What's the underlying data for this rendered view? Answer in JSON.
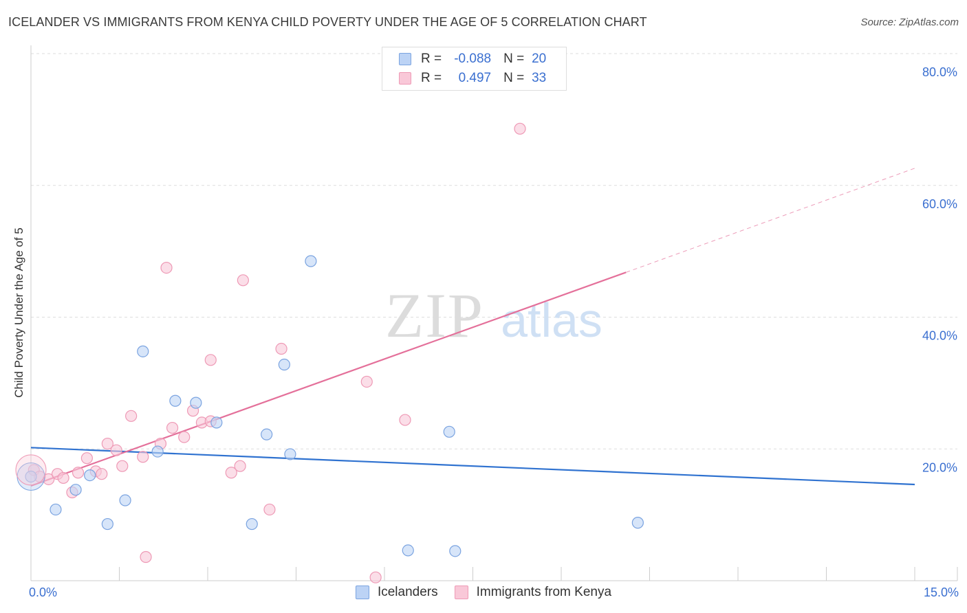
{
  "header": {
    "title": "ICELANDER VS IMMIGRANTS FROM KENYA CHILD POVERTY UNDER THE AGE OF 5 CORRELATION CHART",
    "source": "Source: ZipAtlas.com"
  },
  "watermark": {
    "zip": "ZIP",
    "atlas": "atlas"
  },
  "legend": {
    "rows": [
      {
        "r_label": "R =",
        "r_value": "-0.088",
        "n_label": "N =",
        "n_value": "20"
      },
      {
        "r_label": "R =",
        "r_value": "0.497",
        "n_label": "N =",
        "n_value": "33"
      }
    ]
  },
  "colors": {
    "blue_fill": "#bcd3f5",
    "blue_stroke": "#7aa3e0",
    "blue_line": "#2f72d0",
    "pink_fill": "#f9c8d8",
    "pink_stroke": "#ee99b5",
    "pink_line": "#e4709a",
    "tick_text": "#3a6fd0",
    "grid": "#dddddd"
  },
  "chart_data": {
    "type": "scatter",
    "title": "ICELANDER VS IMMIGRANTS FROM KENYA CHILD POVERTY UNDER THE AGE OF 5 CORRELATION CHART",
    "xlabel": "",
    "ylabel": "Child Poverty Under the Age of 5",
    "xlim": [
      0,
      15
    ],
    "ylim": [
      0,
      80
    ],
    "x_tick_labels": [
      "0.0%",
      "15.0%"
    ],
    "y_ticks": [
      20,
      40,
      60,
      80
    ],
    "y_tick_labels": [
      "20.0%",
      "40.0%",
      "60.0%",
      "80.0%"
    ],
    "grid": true,
    "legend_placement": "bottom-center",
    "series": [
      {
        "name": "Icelanders",
        "color": "#7aa3e0",
        "r": -0.088,
        "n": 20,
        "points": [
          [
            0.0,
            15.8
          ],
          [
            0.42,
            10.8
          ],
          [
            0.76,
            13.8
          ],
          [
            1.0,
            16.0
          ],
          [
            1.3,
            8.6
          ],
          [
            1.6,
            12.2
          ],
          [
            1.9,
            34.8
          ],
          [
            2.15,
            19.6
          ],
          [
            2.45,
            27.3
          ],
          [
            2.8,
            27.0
          ],
          [
            3.15,
            24.0
          ],
          [
            4.0,
            22.2
          ],
          [
            4.3,
            32.8
          ],
          [
            3.75,
            8.6
          ],
          [
            4.4,
            19.2
          ],
          [
            4.75,
            48.5
          ],
          [
            6.4,
            4.6
          ],
          [
            7.1,
            22.6
          ],
          [
            7.2,
            4.5
          ],
          [
            10.3,
            8.8
          ]
        ],
        "trend": {
          "x": [
            0,
            15
          ],
          "y": [
            20.2,
            14.6
          ]
        }
      },
      {
        "name": "Immigrants from Kenya",
        "color": "#ee99b5",
        "r": 0.497,
        "n": 33,
        "points": [
          [
            0.05,
            16.8
          ],
          [
            0.15,
            15.8
          ],
          [
            0.3,
            15.4
          ],
          [
            0.45,
            16.2
          ],
          [
            0.55,
            15.6
          ],
          [
            0.7,
            13.4
          ],
          [
            0.8,
            16.4
          ],
          [
            0.95,
            18.6
          ],
          [
            1.1,
            16.6
          ],
          [
            1.2,
            16.2
          ],
          [
            1.3,
            20.8
          ],
          [
            1.45,
            19.8
          ],
          [
            1.55,
            17.4
          ],
          [
            1.7,
            25.0
          ],
          [
            1.9,
            18.8
          ],
          [
            1.95,
            3.6
          ],
          [
            2.2,
            20.8
          ],
          [
            2.3,
            47.5
          ],
          [
            2.4,
            23.2
          ],
          [
            2.6,
            21.8
          ],
          [
            2.75,
            25.8
          ],
          [
            2.9,
            24.0
          ],
          [
            3.05,
            24.2
          ],
          [
            3.05,
            33.5
          ],
          [
            3.4,
            16.4
          ],
          [
            3.55,
            17.4
          ],
          [
            3.6,
            45.6
          ],
          [
            4.05,
            10.8
          ],
          [
            4.25,
            35.2
          ],
          [
            5.7,
            30.2
          ],
          [
            5.85,
            0.5
          ],
          [
            6.35,
            24.4
          ],
          [
            8.3,
            68.6
          ]
        ],
        "trend": {
          "x": [
            0,
            10.1
          ],
          "y": [
            14.4,
            46.8
          ]
        },
        "trend_extension": {
          "x": [
            10.1,
            15
          ],
          "y": [
            46.8,
            62.6
          ]
        }
      }
    ]
  },
  "bottom_legend": {
    "items": [
      {
        "label": "Icelanders"
      },
      {
        "label": "Immigrants from Kenya"
      }
    ]
  }
}
